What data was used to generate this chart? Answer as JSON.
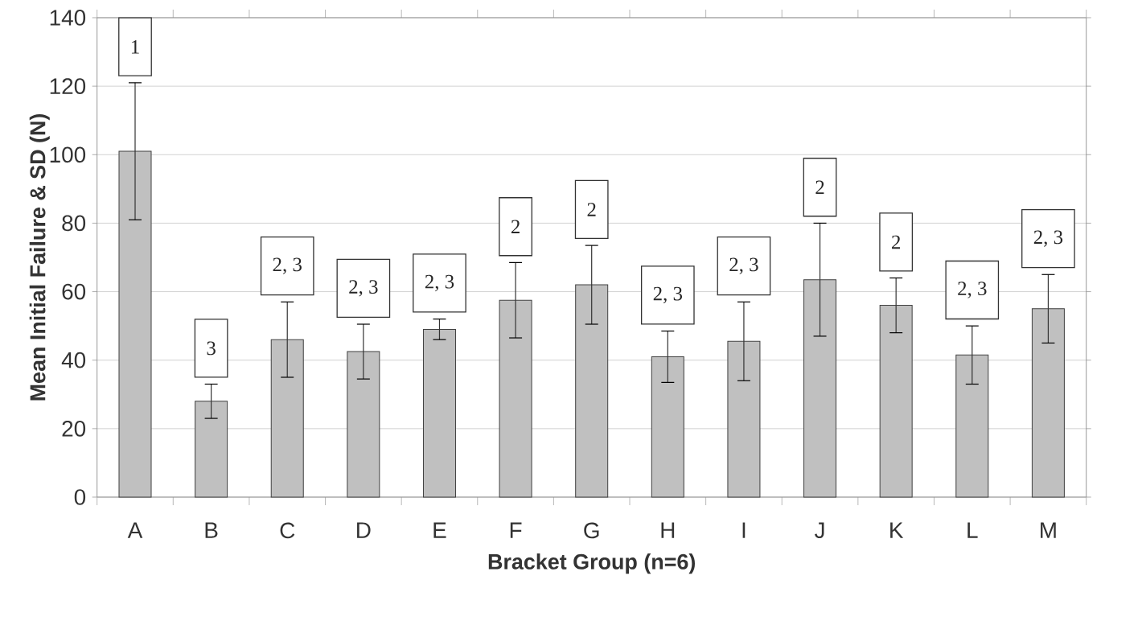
{
  "chart_data": {
    "type": "bar",
    "xlabel": "Bracket Group (n=6)",
    "ylabel": "Mean Initial Failure & SD (N)",
    "categories": [
      "A",
      "B",
      "C",
      "D",
      "E",
      "F",
      "G",
      "H",
      "I",
      "J",
      "K",
      "L",
      "M"
    ],
    "values": [
      101,
      28,
      46,
      42.5,
      49,
      57.5,
      62,
      41,
      45.5,
      63.5,
      56,
      41.5,
      55
    ],
    "errors": [
      20,
      5,
      11,
      8,
      3,
      11,
      11.5,
      7.5,
      11.5,
      16.5,
      8,
      8.5,
      10
    ],
    "color": "#c0c0c0",
    "ylim": [
      0,
      140
    ],
    "yticks": [
      0,
      20,
      40,
      60,
      80,
      100,
      120,
      140
    ],
    "grid": "y",
    "annotations": [
      "1",
      "3",
      "2, 3",
      "2, 3",
      "2, 3",
      "2",
      "2",
      "2, 3",
      "2, 3",
      "2",
      "2",
      "2, 3",
      "2, 3"
    ]
  }
}
